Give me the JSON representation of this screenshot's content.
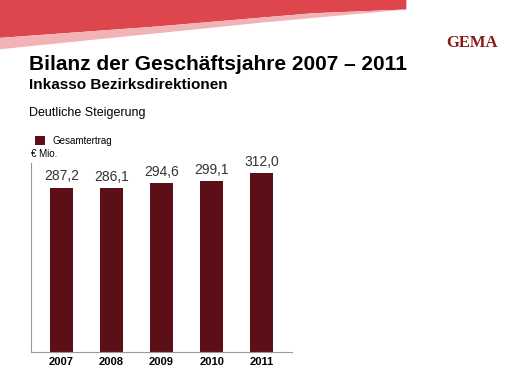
{
  "chart_data": {
    "type": "bar",
    "title": "Bilanz der Geschäftsjahre 2007 – 2011",
    "subtitle": "Inkasso Bezirksdirektionen",
    "annotations": [
      "Deutliche Steigerung",
      "GEMA"
    ],
    "y_label": "€ Mio.",
    "categories": [
      "2007",
      "2008",
      "2009",
      "2010",
      "2011"
    ],
    "series": [
      {
        "name": "Gesamtertrag",
        "color": "#5c0f17",
        "values": [
          287.2,
          286.1,
          294.6,
          299.1,
          312.0
        ],
        "value_labels": [
          "287,2",
          "286,1",
          "294,6",
          "299,1",
          "312,0"
        ]
      }
    ],
    "ylim": [
      0,
      330
    ],
    "yticks": [],
    "data_labels": true,
    "legend": "upper left",
    "tick_labels": "x",
    "grid": false
  }
}
